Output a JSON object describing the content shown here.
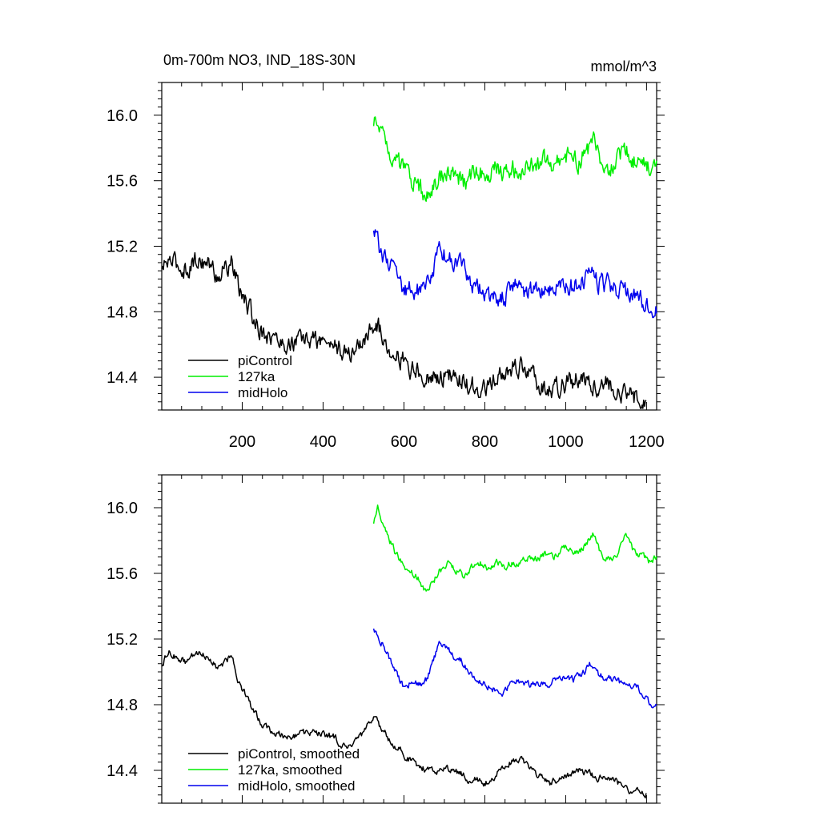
{
  "chart_data": [
    {
      "type": "line",
      "title": "0m-700m NO3, IND_18S-30N",
      "units": "mmol/m^3",
      "xlim": [
        1,
        1225
      ],
      "ylim": [
        14.2,
        16.2
      ],
      "xticks": [
        200,
        400,
        600,
        800,
        1000,
        1200
      ],
      "yticks": [
        14.4,
        14.8,
        15.2,
        15.6,
        16.0
      ],
      "ytick_labels": [
        "14.4",
        "14.8",
        "15.2",
        "15.6",
        "16.0"
      ],
      "legend_position": "bottom-left",
      "noise": 0.05,
      "series": [
        {
          "name": "piControl",
          "color": "#000000",
          "x": [
            1,
            20,
            40,
            60,
            80,
            100,
            120,
            140,
            160,
            175,
            190,
            210,
            230,
            250,
            270,
            290,
            310,
            340,
            370,
            400,
            430,
            460,
            480,
            500,
            520,
            530,
            545,
            560,
            580,
            600,
            620,
            640,
            660,
            680,
            700,
            720,
            740,
            760,
            780,
            800,
            820,
            840,
            860,
            880,
            900,
            920,
            940,
            960,
            980,
            1000,
            1020,
            1040,
            1060,
            1080,
            1100,
            1120,
            1140,
            1160,
            1180,
            1200
          ],
          "y": [
            15.05,
            15.12,
            15.08,
            15.06,
            15.1,
            15.12,
            15.08,
            15.02,
            15.07,
            15.1,
            14.95,
            14.85,
            14.75,
            14.68,
            14.65,
            14.62,
            14.6,
            14.62,
            14.63,
            14.62,
            14.6,
            14.52,
            14.58,
            14.62,
            14.7,
            14.75,
            14.65,
            14.6,
            14.55,
            14.5,
            14.45,
            14.42,
            14.4,
            14.4,
            14.42,
            14.4,
            14.38,
            14.35,
            14.34,
            14.32,
            14.36,
            14.4,
            14.45,
            14.47,
            14.45,
            14.4,
            14.35,
            14.32,
            14.34,
            14.36,
            14.38,
            14.4,
            14.38,
            14.35,
            14.36,
            14.34,
            14.3,
            14.28,
            14.27,
            14.26
          ]
        },
        {
          "name": "127ka",
          "color": "#00ee00",
          "x": [
            525,
            535,
            550,
            565,
            580,
            600,
            620,
            640,
            655,
            670,
            690,
            710,
            730,
            750,
            770,
            790,
            810,
            830,
            850,
            870,
            890,
            910,
            930,
            950,
            970,
            990,
            1010,
            1030,
            1050,
            1070,
            1090,
            1110,
            1130,
            1150,
            1170,
            1190,
            1210,
            1225
          ],
          "y": [
            15.92,
            15.98,
            15.9,
            15.8,
            15.72,
            15.65,
            15.6,
            15.55,
            15.48,
            15.55,
            15.62,
            15.66,
            15.62,
            15.58,
            15.64,
            15.66,
            15.62,
            15.68,
            15.64,
            15.67,
            15.66,
            15.7,
            15.68,
            15.72,
            15.7,
            15.74,
            15.76,
            15.72,
            15.78,
            15.82,
            15.7,
            15.68,
            15.72,
            15.8,
            15.72,
            15.7,
            15.68,
            15.7
          ]
        },
        {
          "name": "midHolo",
          "color": "#0000ee",
          "x": [
            525,
            535,
            550,
            565,
            580,
            600,
            620,
            640,
            655,
            670,
            690,
            700,
            720,
            740,
            760,
            780,
            800,
            820,
            840,
            860,
            880,
            900,
            920,
            940,
            960,
            980,
            1000,
            1020,
            1040,
            1060,
            1080,
            1100,
            1120,
            1140,
            1160,
            1180,
            1200,
            1215,
            1225
          ],
          "y": [
            15.28,
            15.22,
            15.15,
            15.08,
            15.0,
            14.92,
            14.95,
            14.92,
            14.95,
            15.05,
            15.18,
            15.16,
            15.1,
            15.08,
            15.0,
            14.95,
            14.92,
            14.9,
            14.88,
            14.92,
            14.95,
            14.93,
            14.92,
            14.94,
            14.93,
            14.95,
            14.97,
            14.95,
            14.98,
            15.05,
            14.98,
            14.96,
            14.95,
            14.93,
            14.92,
            14.9,
            14.85,
            14.78,
            14.8
          ]
        }
      ]
    },
    {
      "type": "line",
      "title": "",
      "units": "",
      "xlim": [
        1,
        1225
      ],
      "ylim": [
        14.2,
        16.2
      ],
      "xticks": [
        200,
        400,
        600,
        800,
        1000,
        1200
      ],
      "yticks": [
        14.4,
        14.8,
        15.2,
        15.6,
        16.0
      ],
      "ytick_labels": [
        "14.4",
        "14.8",
        "15.2",
        "15.6",
        "16.0"
      ],
      "legend_position": "bottom-left",
      "noise": 0.018,
      "series": [
        {
          "name": "piControl, smoothed",
          "color": "#000000",
          "x": [
            1,
            20,
            40,
            60,
            80,
            100,
            120,
            140,
            160,
            175,
            190,
            210,
            230,
            250,
            270,
            290,
            310,
            340,
            370,
            400,
            430,
            460,
            480,
            500,
            520,
            530,
            545,
            560,
            580,
            600,
            620,
            640,
            660,
            680,
            700,
            720,
            740,
            760,
            780,
            800,
            820,
            840,
            860,
            880,
            900,
            920,
            940,
            960,
            980,
            1000,
            1020,
            1040,
            1060,
            1080,
            1100,
            1120,
            1140,
            1160,
            1180,
            1200
          ],
          "y": [
            15.05,
            15.12,
            15.08,
            15.06,
            15.1,
            15.12,
            15.08,
            15.02,
            15.07,
            15.1,
            14.95,
            14.85,
            14.75,
            14.68,
            14.65,
            14.62,
            14.6,
            14.62,
            14.63,
            14.62,
            14.6,
            14.52,
            14.58,
            14.62,
            14.7,
            14.73,
            14.65,
            14.6,
            14.55,
            14.5,
            14.45,
            14.42,
            14.4,
            14.4,
            14.42,
            14.4,
            14.38,
            14.35,
            14.34,
            14.32,
            14.36,
            14.4,
            14.45,
            14.47,
            14.45,
            14.4,
            14.35,
            14.32,
            14.34,
            14.36,
            14.38,
            14.4,
            14.38,
            14.35,
            14.36,
            14.34,
            14.3,
            14.28,
            14.27,
            14.26
          ]
        },
        {
          "name": "127ka, smoothed",
          "color": "#00ee00",
          "x": [
            525,
            535,
            550,
            565,
            580,
            600,
            620,
            640,
            655,
            670,
            690,
            710,
            730,
            750,
            770,
            790,
            810,
            830,
            850,
            870,
            890,
            910,
            930,
            950,
            970,
            990,
            1010,
            1030,
            1050,
            1070,
            1090,
            1110,
            1130,
            1150,
            1170,
            1190,
            1210,
            1225
          ],
          "y": [
            15.92,
            16.0,
            15.9,
            15.8,
            15.72,
            15.65,
            15.6,
            15.55,
            15.47,
            15.55,
            15.62,
            15.66,
            15.62,
            15.58,
            15.64,
            15.66,
            15.62,
            15.68,
            15.64,
            15.67,
            15.66,
            15.7,
            15.68,
            15.72,
            15.7,
            15.74,
            15.76,
            15.72,
            15.78,
            15.85,
            15.7,
            15.68,
            15.72,
            15.84,
            15.72,
            15.7,
            15.66,
            15.7
          ]
        },
        {
          "name": "midHolo, smoothed",
          "color": "#0000ee",
          "x": [
            525,
            535,
            550,
            565,
            580,
            600,
            620,
            640,
            655,
            670,
            690,
            700,
            720,
            740,
            760,
            780,
            800,
            820,
            840,
            860,
            880,
            900,
            920,
            940,
            960,
            980,
            1000,
            1020,
            1040,
            1060,
            1080,
            1100,
            1120,
            1140,
            1160,
            1180,
            1200,
            1215,
            1225
          ],
          "y": [
            15.28,
            15.22,
            15.15,
            15.08,
            15.0,
            14.9,
            14.95,
            14.92,
            14.95,
            15.05,
            15.18,
            15.16,
            15.1,
            15.08,
            15.0,
            14.95,
            14.92,
            14.9,
            14.86,
            14.92,
            14.95,
            14.93,
            14.92,
            14.94,
            14.93,
            14.95,
            14.97,
            14.95,
            14.98,
            15.05,
            14.98,
            14.96,
            14.95,
            14.93,
            14.92,
            14.9,
            14.85,
            14.76,
            14.8
          ]
        }
      ]
    }
  ]
}
